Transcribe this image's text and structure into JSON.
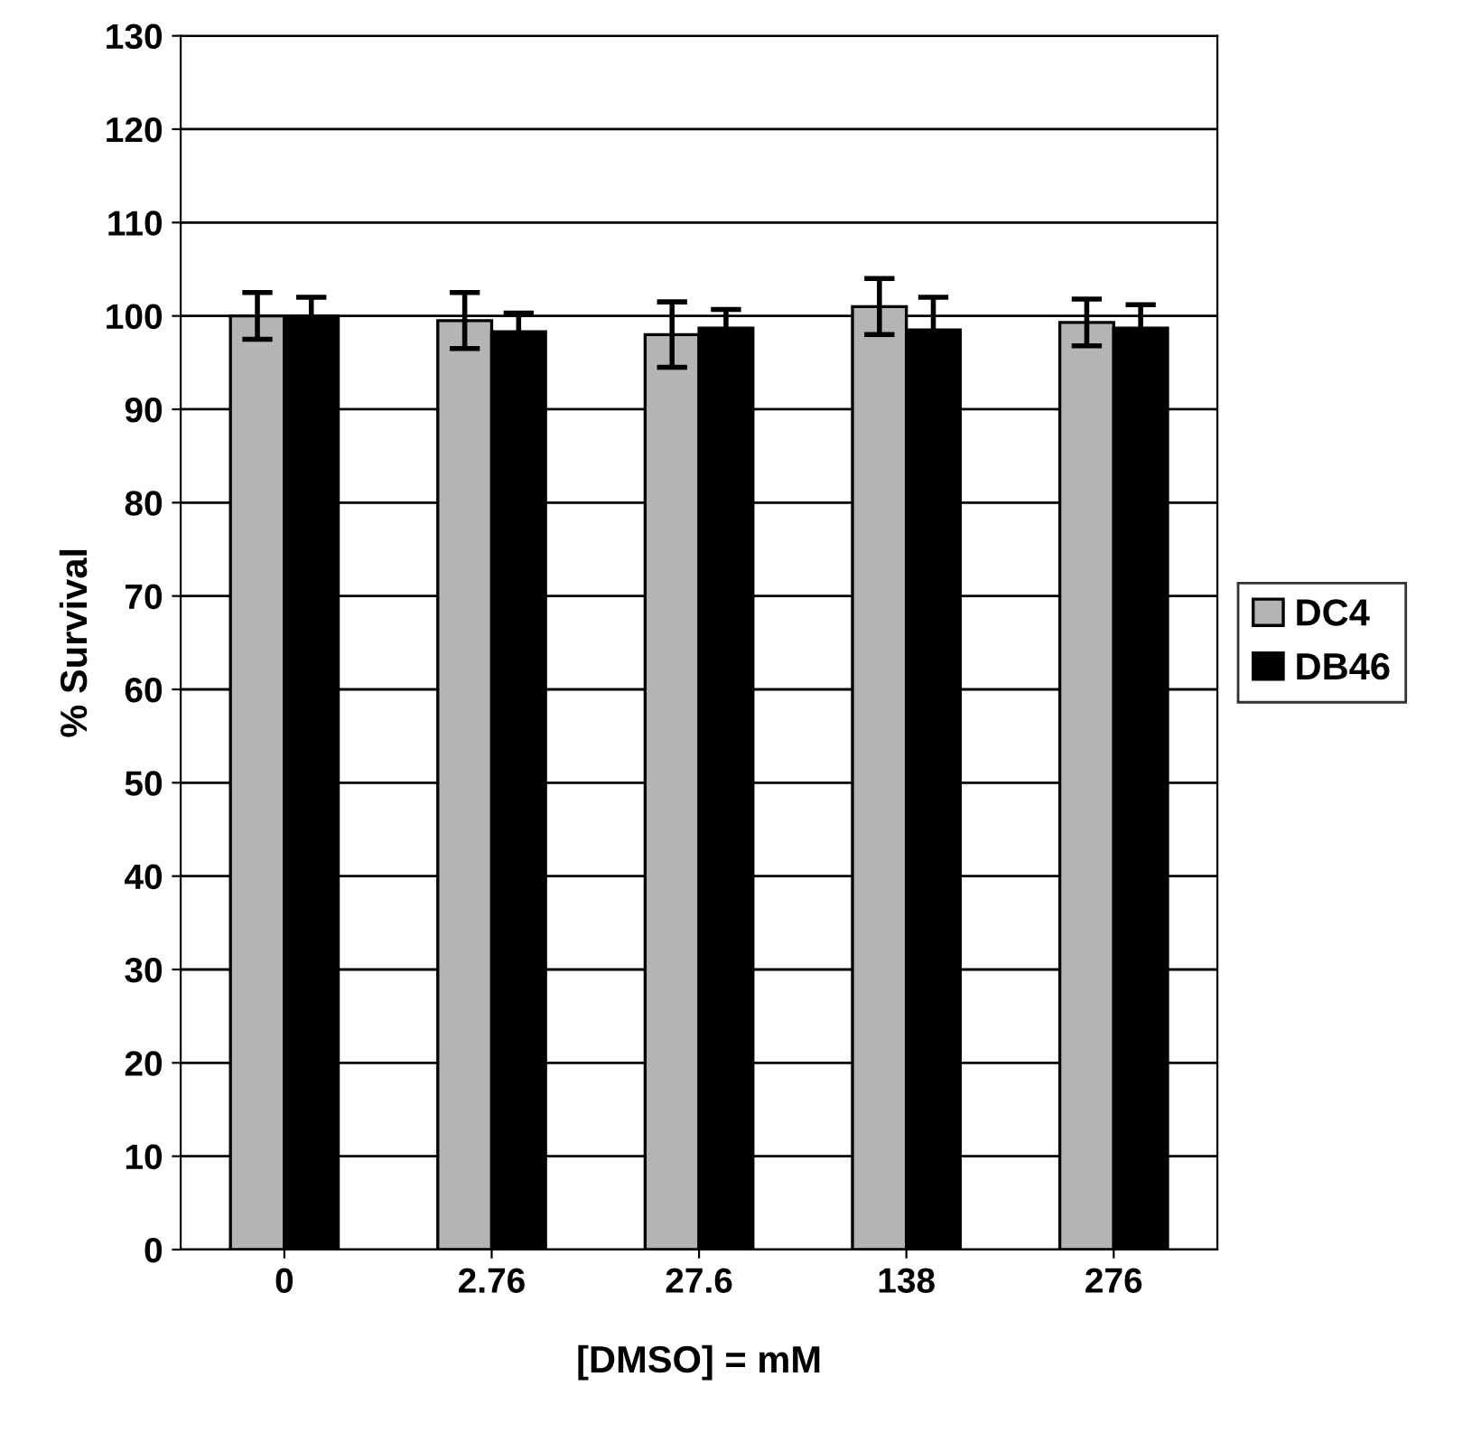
{
  "chart_data": {
    "type": "bar",
    "xlabel": "[DMSO] = mM",
    "ylabel": "% Survival",
    "categories": [
      "0",
      "2.76",
      "27.6",
      "138",
      "276"
    ],
    "series": [
      {
        "name": "DC4",
        "color": "#b4b4b4",
        "values": [
          100,
          99.5,
          98,
          101,
          99.3
        ],
        "errors": [
          2.5,
          3,
          3.5,
          3,
          2.5
        ]
      },
      {
        "name": "DB46",
        "color": "#000000",
        "values": [
          100,
          98.3,
          98.7,
          98.5,
          98.7
        ],
        "errors": [
          2,
          2,
          2,
          3.5,
          2.5
        ]
      }
    ],
    "ylim": [
      0,
      130
    ],
    "yticks": [
      0,
      10,
      20,
      30,
      40,
      50,
      60,
      70,
      80,
      90,
      100,
      110,
      120,
      130
    ],
    "grid": "y",
    "legend": "right"
  }
}
